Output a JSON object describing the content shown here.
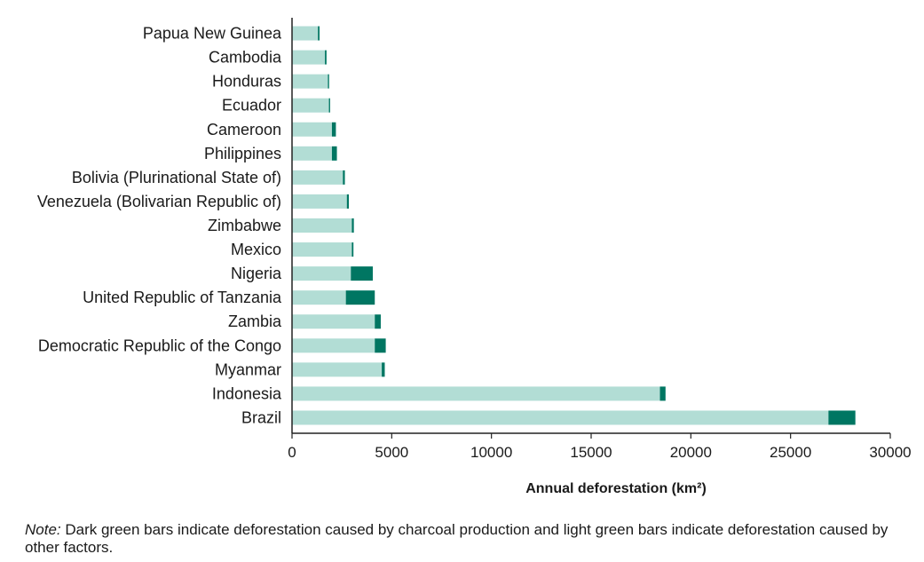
{
  "chart_data": {
    "type": "bar",
    "orientation": "horizontal",
    "stacked": true,
    "categories": [
      "Papua New Guinea",
      "Cambodia",
      "Honduras",
      "Ecuador",
      "Cameroon",
      "Philippines",
      "Bolivia (Plurinational State of)",
      "Venezuela (Bolivarian Republic of)",
      "Zimbabwe",
      "Mexico",
      "Nigeria",
      "United Republic of Tanzania",
      "Zambia",
      "Democratic Republic of the Congo",
      "Myanmar",
      "Indonesia",
      "Brazil"
    ],
    "series": [
      {
        "values": [
          1300,
          1650,
          1800,
          1850,
          2000,
          2000,
          2550,
          2750,
          3000,
          3000,
          2950,
          2700,
          4150,
          4150,
          4500,
          18450,
          26900
        ]
      },
      {
        "values": [
          80,
          80,
          60,
          60,
          200,
          250,
          100,
          100,
          100,
          80,
          1100,
          1450,
          300,
          550,
          150,
          280,
          1350
        ]
      }
    ],
    "colors": {
      "other": "#b2ddd5",
      "charcoal": "#007662"
    },
    "xlabel": "Annual deforestation (km²)",
    "xticks": [
      0,
      5000,
      10000,
      15000,
      20000,
      25000,
      30000
    ],
    "xlim": [
      0,
      30000
    ],
    "grid": false,
    "legend": "none"
  },
  "note": {
    "lead": "Note:",
    "text": " Dark green bars indicate deforestation caused by charcoal production and light green bars indicate deforestation caused by other factors."
  }
}
